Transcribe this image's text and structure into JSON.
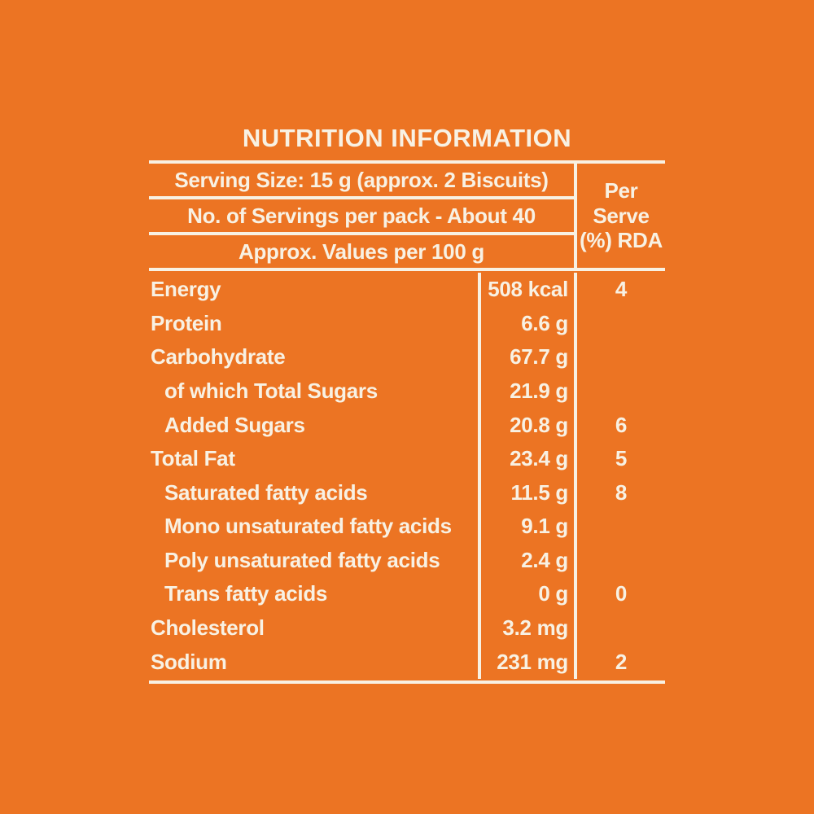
{
  "page": {
    "background_color": "#EC7423",
    "text_color": "#F8F1E3"
  },
  "title": "NUTRITION INFORMATION",
  "header": {
    "serving_size": "Serving Size: 15 g (approx. 2 Biscuits)",
    "servings_per_pack": "No. of Servings per pack - About 40",
    "approx_values": "Approx. Values per 100 g",
    "per_serve_lines": [
      "Per",
      "Serve",
      "(%) RDA"
    ]
  },
  "table": {
    "rows": [
      {
        "label": "Energy",
        "value": "508 kcal",
        "rda": "4"
      },
      {
        "label": "Protein",
        "value": "6.6 g",
        "rda": ""
      },
      {
        "label": "Carbohydrate",
        "value": "67.7 g",
        "rda": ""
      },
      {
        "label": "of which Total Sugars",
        "value": "21.9 g",
        "rda": ""
      },
      {
        "label": "Added Sugars",
        "value": "20.8 g",
        "rda": "6"
      },
      {
        "label": "Total Fat",
        "value": "23.4 g",
        "rda": "5"
      },
      {
        "label": "Saturated fatty acids",
        "value": "11.5 g",
        "rda": "8"
      },
      {
        "label": "Mono unsaturated fatty acids",
        "value": "9.1 g",
        "rda": ""
      },
      {
        "label": "Poly unsaturated fatty acids",
        "value": "2.4 g",
        "rda": ""
      },
      {
        "label": "Trans fatty acids",
        "value": "0 g",
        "rda": "0"
      },
      {
        "label": "Cholesterol",
        "value": "3.2 mg",
        "rda": ""
      },
      {
        "label": "Sodium",
        "value": "231 mg",
        "rda": "2"
      }
    ]
  }
}
